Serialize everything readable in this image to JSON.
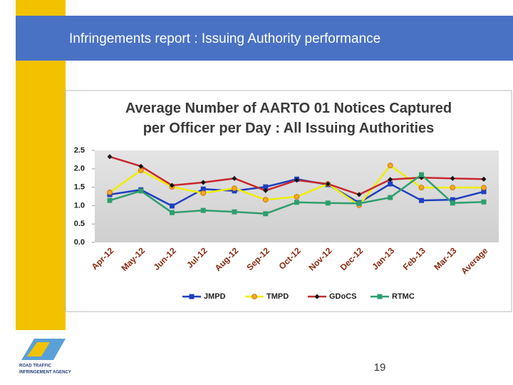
{
  "header": {
    "title": "Infringements report :  Issuing Authority performance"
  },
  "page_number": "19",
  "logo": {
    "lines": [
      "ROAD TRAFFIC",
      "INFRINGEMENT AGENCY"
    ]
  },
  "chart_data": {
    "type": "line",
    "title": "Average Number of AARTO 01 Notices Captured per Officer per Day : All Issuing Authorities",
    "categories": [
      "Apr-12",
      "May-12",
      "Jun-12",
      "Jul-12",
      "Aug-12",
      "Sep-12",
      "Oct-12",
      "Nov-12",
      "Dec-12",
      "Jan-13",
      "Feb-13",
      "Mar-13",
      "Average"
    ],
    "ylim": [
      0,
      2.5
    ],
    "yticks": [
      {
        "value": 0,
        "label": "0.0"
      },
      0.5,
      {
        "value": 1,
        "label": "1.0"
      },
      1.5,
      {
        "value": 2,
        "label": "2.0"
      },
      2.5
    ],
    "grid": false,
    "legend": "bottom",
    "series": [
      {
        "name": "JMPD",
        "color": "#1f3fbf",
        "marker_color": "#1f3fbf",
        "marker": "square",
        "values": [
          1.3,
          1.43,
          0.99,
          1.45,
          1.4,
          1.51,
          1.72,
          1.57,
          1.08,
          1.59,
          1.14,
          1.16,
          1.38
        ]
      },
      {
        "name": "TMPD",
        "color": "#eeee00",
        "marker_color": "#f5a623",
        "marker": "circle",
        "values": [
          1.36,
          1.96,
          1.51,
          1.34,
          1.47,
          1.16,
          1.24,
          1.59,
          1.01,
          2.09,
          1.49,
          1.49,
          1.49
        ]
      },
      {
        "name": "GDoCS",
        "color": "#c8282d",
        "marker_color": "#111111",
        "marker": "diamond",
        "values": [
          2.33,
          2.07,
          1.55,
          1.63,
          1.74,
          1.41,
          1.69,
          1.59,
          1.3,
          1.71,
          1.76,
          1.74,
          1.72
        ]
      },
      {
        "name": "RTMC",
        "color": "#2e9e6e",
        "marker_color": "#2e9e6e",
        "marker": "square",
        "values": [
          1.14,
          1.4,
          0.81,
          0.87,
          0.83,
          0.78,
          1.09,
          1.07,
          1.06,
          1.22,
          1.84,
          1.07,
          1.1
        ]
      }
    ]
  }
}
